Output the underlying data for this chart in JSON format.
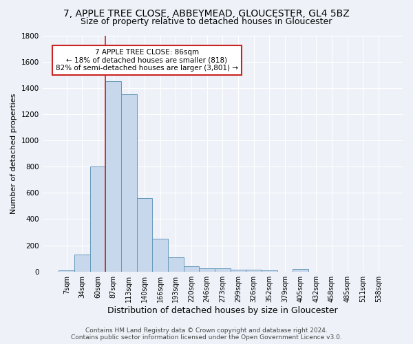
{
  "title": "7, APPLE TREE CLOSE, ABBEYMEAD, GLOUCESTER, GL4 5BZ",
  "subtitle": "Size of property relative to detached houses in Gloucester",
  "xlabel": "Distribution of detached houses by size in Gloucester",
  "ylabel": "Number of detached properties",
  "bar_color": "#c8d8ec",
  "bar_edge_color": "#6699bb",
  "background_color": "#eef2f8",
  "grid_color": "#ffffff",
  "categories": [
    "7sqm",
    "34sqm",
    "60sqm",
    "87sqm",
    "113sqm",
    "140sqm",
    "166sqm",
    "193sqm",
    "220sqm",
    "246sqm",
    "273sqm",
    "299sqm",
    "326sqm",
    "352sqm",
    "379sqm",
    "405sqm",
    "432sqm",
    "458sqm",
    "485sqm",
    "511sqm",
    "538sqm"
  ],
  "values": [
    10,
    130,
    800,
    1450,
    1350,
    560,
    248,
    110,
    40,
    27,
    27,
    15,
    15,
    10,
    0,
    20,
    0,
    0,
    0,
    0,
    0
  ],
  "ylim": [
    0,
    1800
  ],
  "yticks": [
    0,
    200,
    400,
    600,
    800,
    1000,
    1200,
    1400,
    1600,
    1800
  ],
  "vline_color": "#cc2222",
  "annotation_text": "7 APPLE TREE CLOSE: 86sqm\n← 18% of detached houses are smaller (818)\n82% of semi-detached houses are larger (3,801) →",
  "annotation_box_color": "#ffffff",
  "annotation_box_edge": "#cc2222",
  "footer_line1": "Contains HM Land Registry data © Crown copyright and database right 2024.",
  "footer_line2": "Contains public sector information licensed under the Open Government Licence v3.0.",
  "title_fontsize": 10,
  "subtitle_fontsize": 9,
  "xlabel_fontsize": 9,
  "ylabel_fontsize": 8,
  "tick_fontsize": 7,
  "annotation_fontsize": 7.5,
  "footer_fontsize": 6.5
}
